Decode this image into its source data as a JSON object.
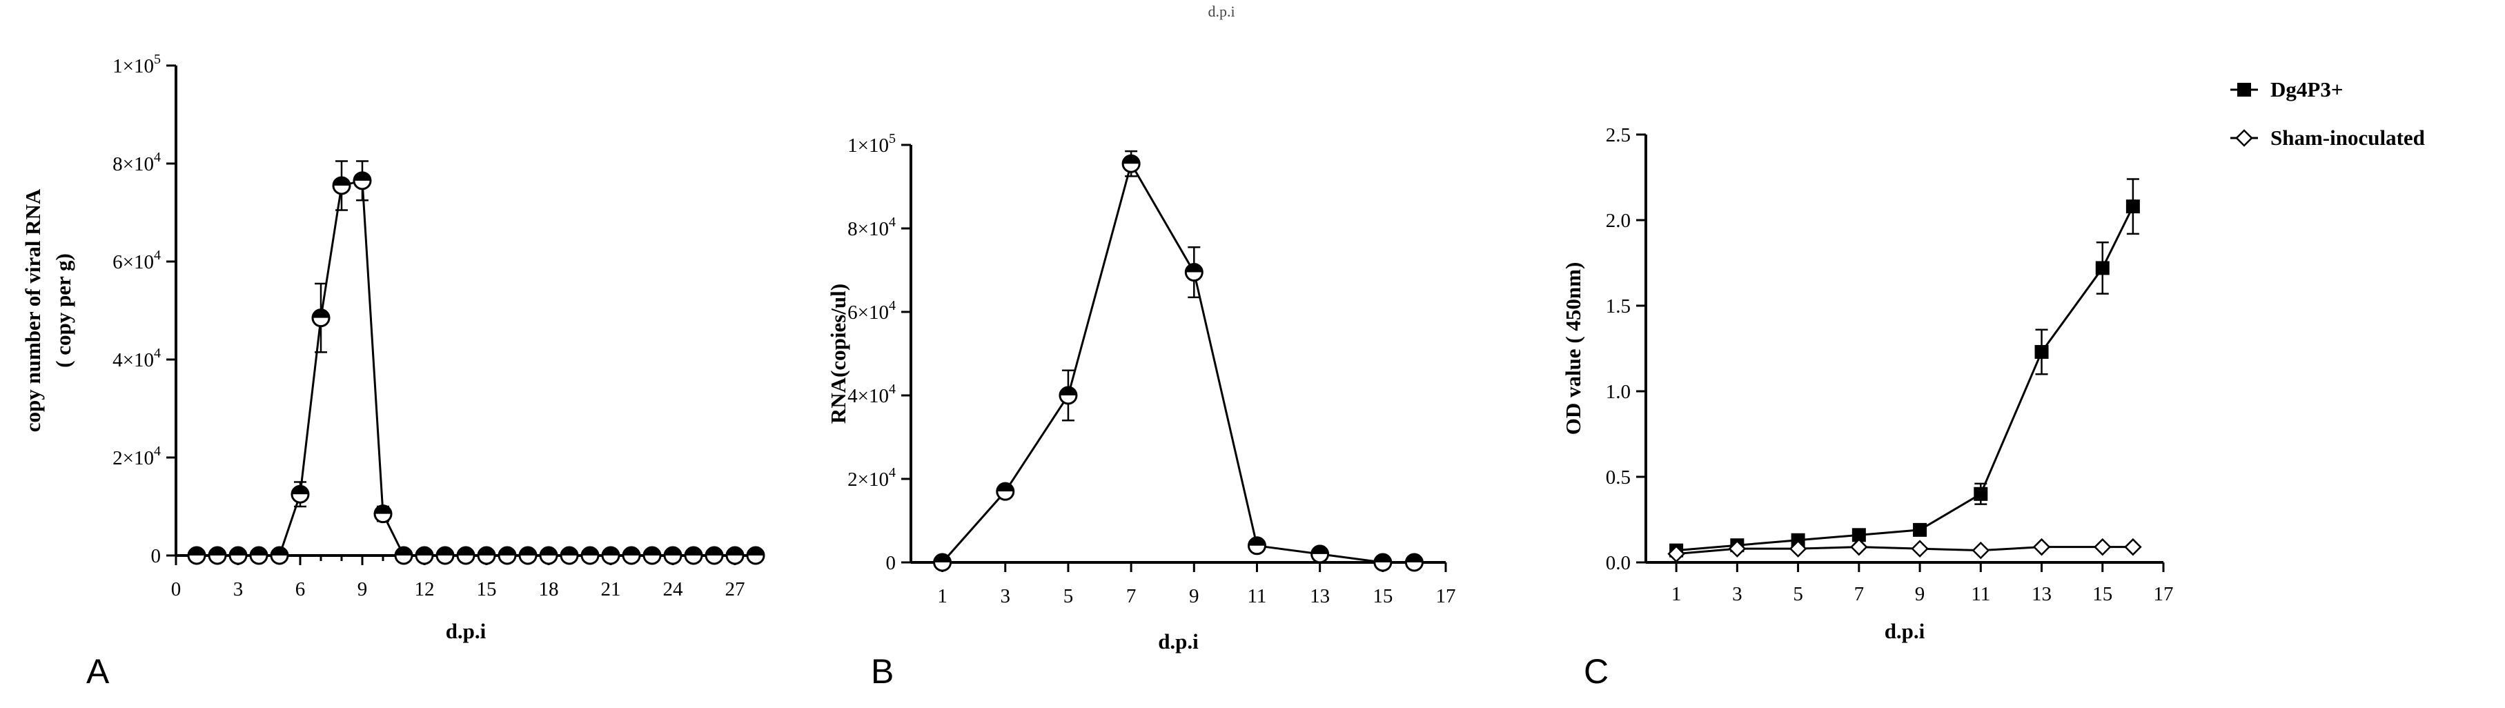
{
  "figure": {
    "top_fragment": "d.p.i",
    "panel_labels": [
      "A",
      "B",
      "C"
    ]
  },
  "colors": {
    "ink": "#000000",
    "background": "#ffffff"
  },
  "chart_data": [
    {
      "type": "line",
      "panel": "A",
      "title": "",
      "xlabel": "d.p.i",
      "ylabel_lines": [
        "copy number of viral RNA",
        "( copy per g)"
      ],
      "xlim": [
        0,
        28
      ],
      "ylim": [
        0,
        100000
      ],
      "x_ticks": [
        0,
        3,
        6,
        9,
        12,
        15,
        18,
        21,
        24,
        27
      ],
      "x_tick_labels": [
        "0",
        "3",
        "6",
        "9",
        "12",
        "15",
        "18",
        "21",
        "24",
        "27"
      ],
      "y_ticks": [
        0,
        20000,
        40000,
        60000,
        80000,
        100000
      ],
      "y_tick_labels": [
        {
          "base": "0",
          "exp": ""
        },
        {
          "base": "2×10",
          "exp": "4"
        },
        {
          "base": "4×10",
          "exp": "4"
        },
        {
          "base": "6×10",
          "exp": "4"
        },
        {
          "base": "8×10",
          "exp": "4"
        },
        {
          "base": "1×10",
          "exp": "5"
        }
      ],
      "marker": "open-circle-half",
      "series": [
        {
          "x": [
            1,
            2,
            3,
            4,
            5,
            6,
            7,
            8,
            9,
            10,
            11,
            12,
            13,
            14,
            15,
            16,
            17,
            18,
            19,
            20,
            21,
            22,
            23,
            24,
            25,
            26,
            27,
            28
          ],
          "y": [
            0,
            0,
            0,
            0,
            0,
            12500,
            48500,
            75500,
            76500,
            8500,
            0,
            0,
            0,
            0,
            0,
            0,
            0,
            0,
            0,
            0,
            0,
            0,
            0,
            0,
            0,
            0,
            0,
            0
          ],
          "err": [
            0,
            0,
            0,
            0,
            0,
            2500,
            7000,
            5000,
            4000,
            1500,
            0,
            0,
            0,
            0,
            0,
            0,
            0,
            0,
            0,
            0,
            0,
            0,
            0,
            0,
            0,
            0,
            0,
            0
          ]
        }
      ]
    },
    {
      "type": "line",
      "panel": "B",
      "title": "",
      "xlabel": "d.p.i",
      "ylabel_lines": [
        "RNA(copies/ul)"
      ],
      "xlim": [
        0,
        17
      ],
      "ylim": [
        0,
        100000
      ],
      "x_ticks": [
        1,
        3,
        5,
        7,
        9,
        11,
        13,
        15,
        17
      ],
      "x_tick_labels": [
        "1",
        "3",
        "5",
        "7",
        "9",
        "11",
        "13",
        "15",
        "17"
      ],
      "y_ticks": [
        0,
        20000,
        40000,
        60000,
        80000,
        100000
      ],
      "y_tick_labels": [
        {
          "base": "0",
          "exp": ""
        },
        {
          "base": "2×10",
          "exp": "4"
        },
        {
          "base": "4×10",
          "exp": "4"
        },
        {
          "base": "6×10",
          "exp": "4"
        },
        {
          "base": "8×10",
          "exp": "4"
        },
        {
          "base": "1×10",
          "exp": "5"
        }
      ],
      "marker": "open-circle-half",
      "series": [
        {
          "x": [
            1,
            3,
            5,
            7,
            9,
            11,
            13,
            15,
            16
          ],
          "y": [
            0,
            17000,
            40000,
            95500,
            69500,
            4000,
            2000,
            0,
            0
          ],
          "err": [
            0,
            1000,
            6000,
            3000,
            6000,
            500,
            500,
            0,
            0
          ]
        }
      ]
    },
    {
      "type": "line",
      "panel": "C",
      "title": "",
      "xlabel": "d.p.i",
      "ylabel_lines": [
        "OD value ( 450nm)"
      ],
      "xlim": [
        0,
        17
      ],
      "ylim": [
        0,
        2.5
      ],
      "x_ticks": [
        1,
        3,
        5,
        7,
        9,
        11,
        13,
        15,
        17
      ],
      "x_tick_labels": [
        "1",
        "3",
        "5",
        "7",
        "9",
        "11",
        "13",
        "15",
        "17"
      ],
      "y_ticks": [
        0,
        0.5,
        1.0,
        1.5,
        2.0,
        2.5
      ],
      "y_tick_labels": [
        {
          "base": "0.0",
          "exp": ""
        },
        {
          "base": "0.5",
          "exp": ""
        },
        {
          "base": "1.0",
          "exp": ""
        },
        {
          "base": "1.5",
          "exp": ""
        },
        {
          "base": "2.0",
          "exp": ""
        },
        {
          "base": "2.5",
          "exp": ""
        }
      ],
      "legend_position": "right",
      "series": [
        {
          "name": "Dg4P3+",
          "marker": "filled-square",
          "x": [
            1,
            3,
            5,
            7,
            9,
            11,
            13,
            15,
            16
          ],
          "y": [
            0.07,
            0.1,
            0.13,
            0.16,
            0.19,
            0.4,
            1.23,
            1.72,
            2.08
          ],
          "err": [
            0,
            0,
            0,
            0,
            0,
            0.06,
            0.13,
            0.15,
            0.16
          ]
        },
        {
          "name": "Sham-inoculated",
          "marker": "open-diamond",
          "x": [
            1,
            3,
            5,
            7,
            9,
            11,
            13,
            15,
            16
          ],
          "y": [
            0.05,
            0.08,
            0.08,
            0.09,
            0.08,
            0.07,
            0.09,
            0.09,
            0.09
          ],
          "err": [
            0,
            0,
            0,
            0,
            0,
            0,
            0,
            0,
            0
          ]
        }
      ]
    }
  ]
}
